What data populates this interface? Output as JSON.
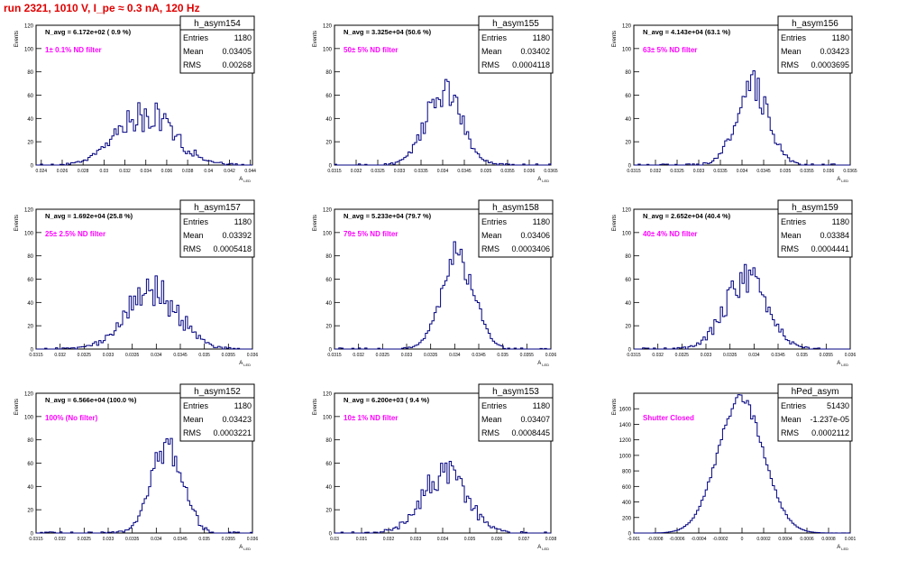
{
  "page_title": "run 2321,  1010 V, I_pe ≈ 0.3 nA, 120 Hz",
  "colors": {
    "title": "#e00000",
    "histogram": "#000080",
    "note": "#ff00ff",
    "frame": "#000000"
  },
  "chart_data": [
    {
      "type": "histogram",
      "name": "h_asym154",
      "ylabel": "Events",
      "xlabel": "A_LED",
      "ylim": [
        0,
        120
      ],
      "yticks": [
        0,
        20,
        40,
        60,
        80,
        100,
        120
      ],
      "xlim": [
        0.0235,
        0.0442
      ],
      "xticks": [
        0.024,
        0.026,
        0.028,
        0.03,
        0.032,
        0.034,
        0.036,
        0.038,
        0.04,
        0.042,
        0.044
      ],
      "xtick_labels": [
        "0.024",
        "0.026",
        "0.028",
        "0.03",
        "0.032",
        "0.034",
        "0.036",
        "0.038",
        "0.04",
        "0.042",
        "0.044"
      ],
      "navg": "N_avg = 6.172e+02 ( 0.9 %)",
      "note": "1± 0.1% ND filter",
      "stats": {
        "entries": "1180",
        "mean": "0.03405",
        "rms": "0.00268"
      },
      "mean": 0.03405,
      "rms": 0.00268,
      "peak": 45,
      "jitter": 0.35,
      "seed": 154
    },
    {
      "type": "histogram",
      "name": "h_asym155",
      "ylabel": "Events",
      "xlabel": "A_LED",
      "ylim": [
        0,
        120
      ],
      "yticks": [
        0,
        20,
        40,
        60,
        80,
        100,
        120
      ],
      "xlim": [
        0.0315,
        0.0365
      ],
      "xticks": [
        0.0315,
        0.032,
        0.0325,
        0.033,
        0.0335,
        0.034,
        0.0345,
        0.035,
        0.0355,
        0.036,
        0.0365
      ],
      "xtick_labels": [
        "0.0315",
        "0.032",
        "0.0325",
        "0.033",
        "0.0335",
        "0.034",
        "0.0345",
        "0.035",
        "0.0355",
        "0.036",
        "0.0365"
      ],
      "navg": "N_avg = 3.325e+04 (50.6 %)",
      "note": "50± 5% ND filter",
      "stats": {
        "entries": "1180",
        "mean": "0.03402",
        "rms": "0.0004118"
      },
      "mean": 0.03402,
      "rms": 0.0004118,
      "peak": 62,
      "jitter": 0.25,
      "seed": 155
    },
    {
      "type": "histogram",
      "name": "h_asym156",
      "ylabel": "Events",
      "xlabel": "A_LED",
      "ylim": [
        0,
        120
      ],
      "yticks": [
        0,
        20,
        40,
        60,
        80,
        100,
        120
      ],
      "xlim": [
        0.0315,
        0.0365
      ],
      "xticks": [
        0.0315,
        0.032,
        0.0325,
        0.033,
        0.0335,
        0.034,
        0.0345,
        0.035,
        0.0355,
        0.036,
        0.0365
      ],
      "xtick_labels": [
        "0.0315",
        "0.032",
        "0.0325",
        "0.033",
        "0.0335",
        "0.034",
        "0.0345",
        "0.035",
        "0.0355",
        "0.036",
        "0.0365"
      ],
      "navg": "N_avg = 4.143e+04 (63.1 %)",
      "note": "63± 5% ND filter",
      "stats": {
        "entries": "1180",
        "mean": "0.03423",
        "rms": "0.0003695"
      },
      "mean": 0.03423,
      "rms": 0.0003695,
      "peak": 68,
      "jitter": 0.25,
      "seed": 156
    },
    {
      "type": "histogram",
      "name": "h_asym157",
      "ylabel": "Events",
      "xlabel": "A_LED",
      "ylim": [
        0,
        120
      ],
      "yticks": [
        0,
        20,
        40,
        60,
        80,
        100,
        120
      ],
      "xlim": [
        0.0315,
        0.036
      ],
      "xticks": [
        0.0315,
        0.032,
        0.0325,
        0.033,
        0.0335,
        0.034,
        0.0345,
        0.035,
        0.0355,
        0.036
      ],
      "xtick_labels": [
        "0.0315",
        "0.032",
        "0.0325",
        "0.033",
        "0.0335",
        "0.034",
        "0.0345",
        "0.035",
        "0.0355",
        "0.036"
      ],
      "navg": "N_avg = 1.692e+04 (25.8 %)",
      "note": "25± 2.5% ND filter",
      "stats": {
        "entries": "1180",
        "mean": "0.03392",
        "rms": "0.0005418"
      },
      "mean": 0.03392,
      "rms": 0.0005418,
      "peak": 50,
      "jitter": 0.3,
      "seed": 157
    },
    {
      "type": "histogram",
      "name": "h_asym158",
      "ylabel": "Events",
      "xlabel": "A_LED",
      "ylim": [
        0,
        120
      ],
      "yticks": [
        0,
        20,
        40,
        60,
        80,
        100,
        120
      ],
      "xlim": [
        0.0315,
        0.036
      ],
      "xticks": [
        0.0315,
        0.032,
        0.0325,
        0.033,
        0.0335,
        0.034,
        0.0345,
        0.035,
        0.0355,
        0.036
      ],
      "xtick_labels": [
        "0.0315",
        "0.032",
        "0.0325",
        "0.033",
        "0.0335",
        "0.034",
        "0.0345",
        "0.035",
        "0.0355",
        "0.036"
      ],
      "navg": "N_avg = 5.233e+04 (79.7 %)",
      "note": "79± 5% ND filter",
      "stats": {
        "entries": "1180",
        "mean": "0.03406",
        "rms": "0.0003406"
      },
      "mean": 0.03406,
      "rms": 0.0003406,
      "peak": 80,
      "jitter": 0.2,
      "seed": 158
    },
    {
      "type": "histogram",
      "name": "h_asym159",
      "ylabel": "Events",
      "xlabel": "A_LED",
      "ylim": [
        0,
        120
      ],
      "yticks": [
        0,
        20,
        40,
        60,
        80,
        100,
        120
      ],
      "xlim": [
        0.0315,
        0.036
      ],
      "xticks": [
        0.0315,
        0.032,
        0.0325,
        0.033,
        0.0335,
        0.034,
        0.0345,
        0.035,
        0.0355,
        0.036
      ],
      "xtick_labels": [
        "0.0315",
        "0.032",
        "0.0325",
        "0.033",
        "0.0335",
        "0.034",
        "0.0345",
        "0.035",
        "0.0355",
        "0.036"
      ],
      "navg": "N_avg = 2.652e+04 (40.4 %)",
      "note": "40± 4% ND filter",
      "stats": {
        "entries": "1180",
        "mean": "0.03384",
        "rms": "0.0004441"
      },
      "mean": 0.03384,
      "rms": 0.0004441,
      "peak": 60,
      "jitter": 0.25,
      "seed": 159
    },
    {
      "type": "histogram",
      "name": "h_asym152",
      "ylabel": "Events",
      "xlabel": "A_LED",
      "ylim": [
        0,
        120
      ],
      "yticks": [
        0,
        20,
        40,
        60,
        80,
        100,
        120
      ],
      "xlim": [
        0.0315,
        0.036
      ],
      "xticks": [
        0.0315,
        0.032,
        0.0325,
        0.033,
        0.0335,
        0.034,
        0.0345,
        0.035,
        0.0355,
        0.036
      ],
      "xtick_labels": [
        "0.0315",
        "0.032",
        "0.0325",
        "0.033",
        "0.0335",
        "0.034",
        "0.0345",
        "0.035",
        "0.0355",
        "0.036"
      ],
      "navg": "N_avg = 6.566e+04 (100.0 %)",
      "note": "100% (No filter)",
      "stats": {
        "entries": "1180",
        "mean": "0.03423",
        "rms": "0.0003221"
      },
      "mean": 0.03423,
      "rms": 0.0003221,
      "peak": 78,
      "jitter": 0.22,
      "seed": 152
    },
    {
      "type": "histogram",
      "name": "h_asym153",
      "ylabel": "Events",
      "xlabel": "A_LED",
      "ylim": [
        0,
        120
      ],
      "yticks": [
        0,
        20,
        40,
        60,
        80,
        100,
        120
      ],
      "xlim": [
        0.03,
        0.038
      ],
      "xticks": [
        0.03,
        0.031,
        0.032,
        0.033,
        0.034,
        0.035,
        0.036,
        0.037,
        0.038
      ],
      "xtick_labels": [
        "0.03",
        "0.031",
        "0.032",
        "0.033",
        "0.034",
        "0.035",
        "0.036",
        "0.037",
        "0.038"
      ],
      "navg": "N_avg = 6.200e+03 ( 9.4 %)",
      "note": "10± 1% ND filter",
      "stats": {
        "entries": "1180",
        "mean": "0.03407",
        "rms": "0.0008445"
      },
      "mean": 0.03407,
      "rms": 0.0008445,
      "peak": 50,
      "jitter": 0.3,
      "seed": 153
    },
    {
      "type": "histogram",
      "name": "hPed_asym",
      "ylabel": "Events",
      "xlabel": "A_LED",
      "ylim": [
        0,
        1800
      ],
      "yticks": [
        0,
        200,
        400,
        600,
        800,
        1000,
        1200,
        1400,
        1600
      ],
      "xlim": [
        -0.001,
        0.001
      ],
      "xticks": [
        -0.001,
        -0.0008,
        -0.0006,
        -0.0004,
        -0.0002,
        0,
        0.0002,
        0.0004,
        0.0006,
        0.0008,
        0.001
      ],
      "xtick_labels": [
        "-0.001",
        "-0.0008",
        "-0.0006",
        "-0.0004",
        "-0.0002",
        "0",
        "0.0002",
        "0.0004",
        "0.0006",
        "0.0008",
        "0.001"
      ],
      "navg": "",
      "note": "Shutter Closed",
      "stats": {
        "entries": "51430",
        "mean": "-1.237e-05",
        "rms": "0.0002112"
      },
      "mean": -1.237e-05,
      "rms": 0.0002112,
      "peak": 1720,
      "jitter": 0.04,
      "seed": 160
    }
  ]
}
